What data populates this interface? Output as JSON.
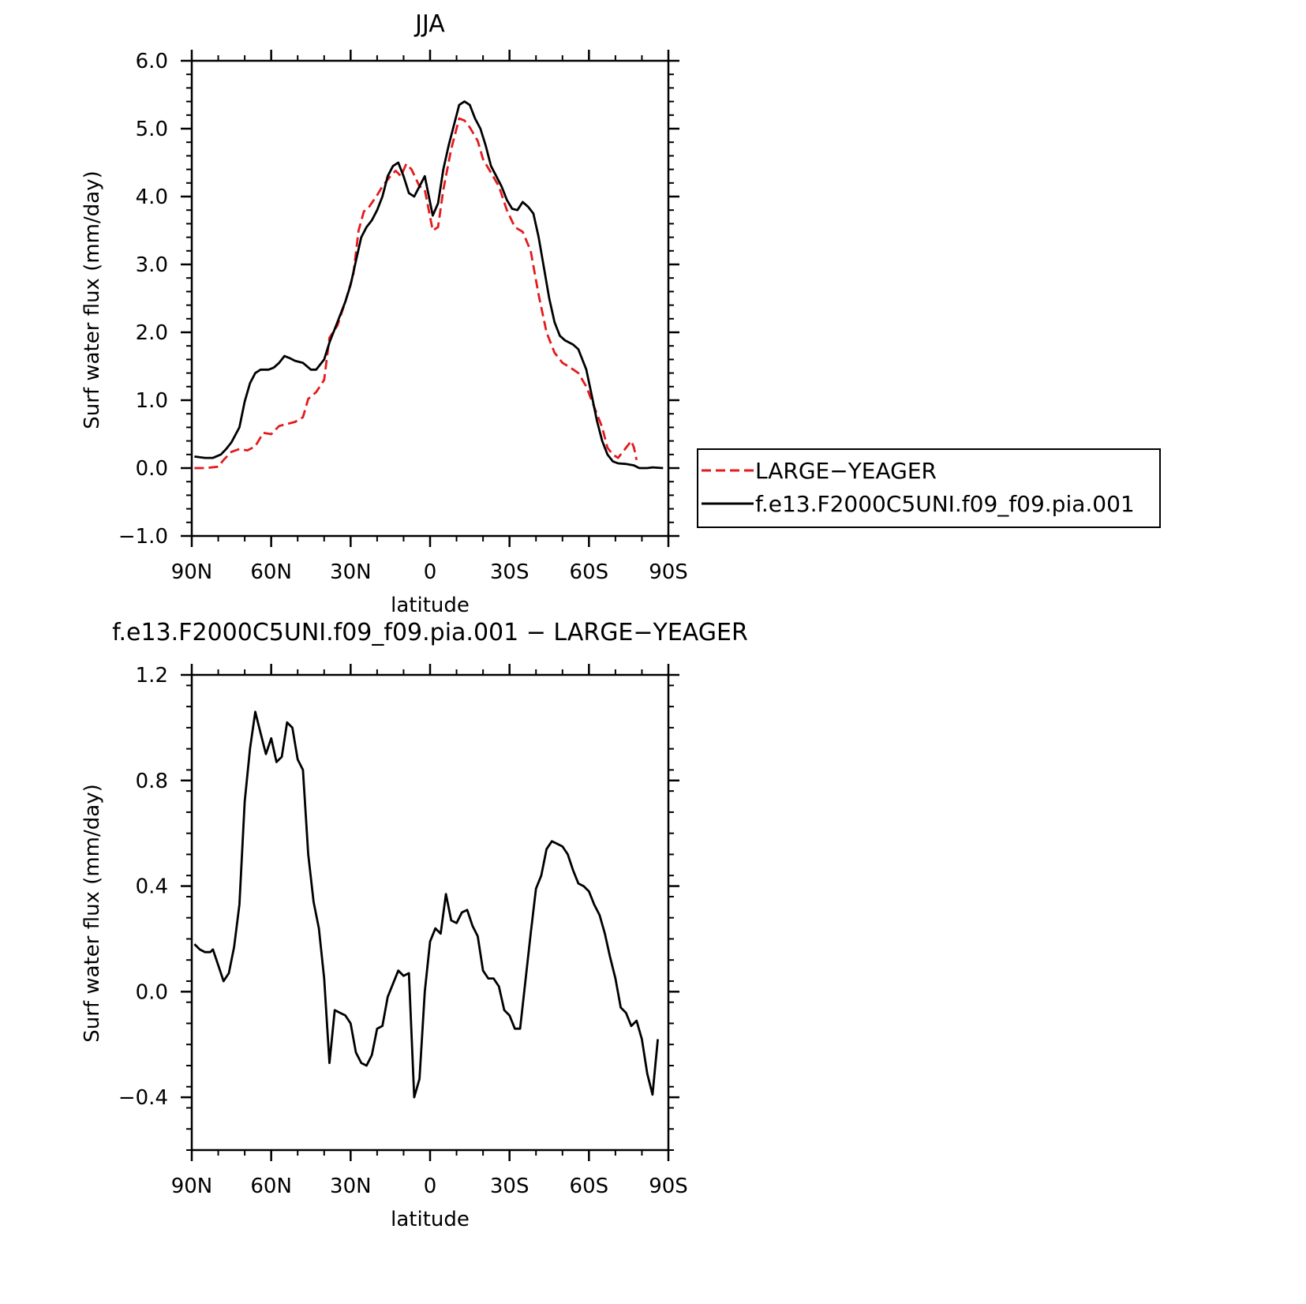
{
  "chart_data": [
    {
      "type": "line",
      "title": "JJA",
      "xlabel": "latitude",
      "ylabel": "Surf water flux (mm/day)",
      "xlim": [
        90,
        -90
      ],
      "ylim": [
        -1.0,
        6.0
      ],
      "x_ticks": [
        "90N",
        "60N",
        "30N",
        "0",
        "30S",
        "60S",
        "90S"
      ],
      "y_ticks": [
        "6.0",
        "5.0",
        "4.0",
        "3.0",
        "2.0",
        "1.0",
        "0.0",
        "−1.0"
      ],
      "legend_position": "right",
      "series": [
        {
          "name": "LARGE−YEAGER",
          "color": "#e41a1c",
          "dash": "dashed",
          "points": [
            [
              89,
              0.0
            ],
            [
              85,
              0.0
            ],
            [
              80,
              0.02
            ],
            [
              78,
              0.12
            ],
            [
              75,
              0.24
            ],
            [
              72,
              0.28
            ],
            [
              69,
              0.26
            ],
            [
              66,
              0.32
            ],
            [
              63,
              0.52
            ],
            [
              60,
              0.5
            ],
            [
              57,
              0.62
            ],
            [
              54,
              0.65
            ],
            [
              51,
              0.68
            ],
            [
              48,
              0.75
            ],
            [
              46,
              1.02
            ],
            [
              43,
              1.12
            ],
            [
              40,
              1.3
            ],
            [
              38,
              1.92
            ],
            [
              35,
              2.1
            ],
            [
              32,
              2.45
            ],
            [
              29,
              2.85
            ],
            [
              27,
              3.5
            ],
            [
              25,
              3.78
            ],
            [
              23,
              3.85
            ],
            [
              20,
              4.02
            ],
            [
              18,
              4.15
            ],
            [
              15,
              4.3
            ],
            [
              13,
              4.38
            ],
            [
              11,
              4.3
            ],
            [
              9,
              4.48
            ],
            [
              7,
              4.4
            ],
            [
              4,
              4.15
            ],
            [
              2,
              4.1
            ],
            [
              -1,
              3.5
            ],
            [
              -3,
              3.55
            ],
            [
              -5,
              4.1
            ],
            [
              -8,
              4.7
            ],
            [
              -11,
              5.15
            ],
            [
              -13,
              5.12
            ],
            [
              -15,
              5.02
            ],
            [
              -18,
              4.82
            ],
            [
              -20,
              4.55
            ],
            [
              -23,
              4.35
            ],
            [
              -26,
              4.15
            ],
            [
              -29,
              3.8
            ],
            [
              -32,
              3.55
            ],
            [
              -35,
              3.48
            ],
            [
              -38,
              3.2
            ],
            [
              -41,
              2.55
            ],
            [
              -44,
              2.0
            ],
            [
              -47,
              1.7
            ],
            [
              -50,
              1.55
            ],
            [
              -53,
              1.48
            ],
            [
              -56,
              1.4
            ],
            [
              -59,
              1.2
            ],
            [
              -62,
              0.9
            ],
            [
              -65,
              0.6
            ],
            [
              -67,
              0.3
            ],
            [
              -69,
              0.2
            ],
            [
              -71,
              0.15
            ],
            [
              -73,
              0.25
            ],
            [
              -76,
              0.4
            ],
            [
              -77,
              0.3
            ],
            [
              -78,
              0.12
            ]
          ]
        },
        {
          "name": "f.e13.F2000C5UNI.f09_f09.pia.001",
          "color": "#000000",
          "dash": "solid",
          "points": [
            [
              89,
              0.17
            ],
            [
              85,
              0.15
            ],
            [
              82,
              0.15
            ],
            [
              79,
              0.2
            ],
            [
              77,
              0.28
            ],
            [
              75,
              0.38
            ],
            [
              72,
              0.6
            ],
            [
              70,
              0.98
            ],
            [
              68,
              1.25
            ],
            [
              66,
              1.4
            ],
            [
              64,
              1.45
            ],
            [
              61,
              1.45
            ],
            [
              59,
              1.48
            ],
            [
              57,
              1.55
            ],
            [
              55,
              1.65
            ],
            [
              53,
              1.62
            ],
            [
              51,
              1.58
            ],
            [
              48,
              1.55
            ],
            [
              45,
              1.45
            ],
            [
              43,
              1.45
            ],
            [
              40,
              1.6
            ],
            [
              38,
              1.85
            ],
            [
              35,
              2.15
            ],
            [
              32,
              2.45
            ],
            [
              30,
              2.7
            ],
            [
              28,
              3.05
            ],
            [
              26,
              3.4
            ],
            [
              24,
              3.55
            ],
            [
              22,
              3.65
            ],
            [
              20,
              3.8
            ],
            [
              18,
              4.0
            ],
            [
              16,
              4.3
            ],
            [
              14,
              4.45
            ],
            [
              12,
              4.5
            ],
            [
              10,
              4.3
            ],
            [
              8,
              4.05
            ],
            [
              6,
              4.0
            ],
            [
              4,
              4.15
            ],
            [
              2,
              4.3
            ],
            [
              -1,
              3.72
            ],
            [
              -3,
              3.9
            ],
            [
              -5,
              4.4
            ],
            [
              -7,
              4.75
            ],
            [
              -9,
              5.05
            ],
            [
              -11,
              5.35
            ],
            [
              -13,
              5.4
            ],
            [
              -15,
              5.35
            ],
            [
              -17,
              5.15
            ],
            [
              -19,
              5.0
            ],
            [
              -21,
              4.75
            ],
            [
              -23,
              4.45
            ],
            [
              -25,
              4.3
            ],
            [
              -27,
              4.15
            ],
            [
              -29,
              3.95
            ],
            [
              -31,
              3.82
            ],
            [
              -33,
              3.8
            ],
            [
              -35,
              3.92
            ],
            [
              -37,
              3.85
            ],
            [
              -39,
              3.75
            ],
            [
              -41,
              3.4
            ],
            [
              -43,
              2.95
            ],
            [
              -45,
              2.5
            ],
            [
              -47,
              2.15
            ],
            [
              -49,
              1.95
            ],
            [
              -51,
              1.88
            ],
            [
              -54,
              1.82
            ],
            [
              -56,
              1.75
            ],
            [
              -59,
              1.45
            ],
            [
              -61,
              1.08
            ],
            [
              -63,
              0.7
            ],
            [
              -65,
              0.4
            ],
            [
              -67,
              0.2
            ],
            [
              -69,
              0.1
            ],
            [
              -71,
              0.07
            ],
            [
              -74,
              0.06
            ],
            [
              -77,
              0.04
            ],
            [
              -79,
              0.0
            ],
            [
              -82,
              0.0
            ],
            [
              -84,
              0.01
            ],
            [
              -88,
              0.0
            ]
          ]
        }
      ]
    },
    {
      "type": "line",
      "title": "f.e13.F2000C5UNI.f09_f09.pia.001 − LARGE−YEAGER",
      "xlabel": "latitude",
      "ylabel": "Surf water flux (mm/day)",
      "xlim": [
        90,
        -90
      ],
      "ylim": [
        -0.6,
        1.2
      ],
      "x_ticks": [
        "90N",
        "60N",
        "30N",
        "0",
        "30S",
        "60S",
        "90S"
      ],
      "y_ticks": [
        "1.2",
        "0.8",
        "0.4",
        "0.0",
        "−0.4"
      ],
      "series": [
        {
          "color": "#000000",
          "dash": "solid",
          "points": [
            [
              89,
              0.18
            ],
            [
              87,
              0.16
            ],
            [
              85,
              0.15
            ],
            [
              83,
              0.15
            ],
            [
              82,
              0.16
            ],
            [
              80,
              0.1
            ],
            [
              78,
              0.04
            ],
            [
              76,
              0.07
            ],
            [
              74,
              0.17
            ],
            [
              72,
              0.33
            ],
            [
              70,
              0.72
            ],
            [
              68,
              0.92
            ],
            [
              66,
              1.06
            ],
            [
              64,
              0.98
            ],
            [
              62,
              0.9
            ],
            [
              60,
              0.96
            ],
            [
              58,
              0.87
            ],
            [
              56,
              0.89
            ],
            [
              54,
              1.02
            ],
            [
              52,
              1.0
            ],
            [
              50,
              0.88
            ],
            [
              48,
              0.84
            ],
            [
              46,
              0.52
            ],
            [
              44,
              0.34
            ],
            [
              42,
              0.24
            ],
            [
              40,
              0.05
            ],
            [
              38,
              -0.27
            ],
            [
              36,
              -0.07
            ],
            [
              34,
              -0.08
            ],
            [
              32,
              -0.09
            ],
            [
              30,
              -0.12
            ],
            [
              28,
              -0.23
            ],
            [
              26,
              -0.27
            ],
            [
              24,
              -0.28
            ],
            [
              22,
              -0.24
            ],
            [
              20,
              -0.14
            ],
            [
              18,
              -0.13
            ],
            [
              16,
              -0.02
            ],
            [
              14,
              0.03
            ],
            [
              12,
              0.08
            ],
            [
              10,
              0.06
            ],
            [
              8,
              0.07
            ],
            [
              6,
              -0.4
            ],
            [
              4,
              -0.33
            ],
            [
              2,
              0.0
            ],
            [
              0,
              0.19
            ],
            [
              -2,
              0.24
            ],
            [
              -4,
              0.22
            ],
            [
              -6,
              0.37
            ],
            [
              -8,
              0.27
            ],
            [
              -10,
              0.26
            ],
            [
              -12,
              0.3
            ],
            [
              -14,
              0.31
            ],
            [
              -16,
              0.25
            ],
            [
              -18,
              0.21
            ],
            [
              -20,
              0.08
            ],
            [
              -22,
              0.05
            ],
            [
              -24,
              0.05
            ],
            [
              -26,
              0.02
            ],
            [
              -28,
              -0.07
            ],
            [
              -30,
              -0.09
            ],
            [
              -32,
              -0.14
            ],
            [
              -34,
              -0.14
            ],
            [
              -36,
              0.04
            ],
            [
              -38,
              0.22
            ],
            [
              -40,
              0.39
            ],
            [
              -42,
              0.44
            ],
            [
              -44,
              0.54
            ],
            [
              -46,
              0.57
            ],
            [
              -48,
              0.56
            ],
            [
              -50,
              0.55
            ],
            [
              -52,
              0.52
            ],
            [
              -54,
              0.46
            ],
            [
              -56,
              0.41
            ],
            [
              -58,
              0.4
            ],
            [
              -60,
              0.38
            ],
            [
              -62,
              0.33
            ],
            [
              -64,
              0.29
            ],
            [
              -66,
              0.22
            ],
            [
              -68,
              0.13
            ],
            [
              -70,
              0.05
            ],
            [
              -72,
              -0.06
            ],
            [
              -74,
              -0.08
            ],
            [
              -76,
              -0.13
            ],
            [
              -78,
              -0.11
            ],
            [
              -80,
              -0.18
            ],
            [
              -82,
              -0.31
            ],
            [
              -84,
              -0.39
            ],
            [
              -86,
              -0.18
            ]
          ]
        }
      ]
    }
  ]
}
